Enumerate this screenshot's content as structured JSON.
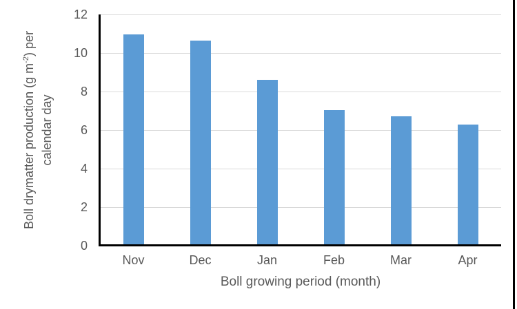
{
  "figure": {
    "background_color": "#FFFFFF",
    "right_border_color": "#000000"
  },
  "axes": {
    "y_title_line1_pre": "Boll drymatter production (g m",
    "y_title_superscript": "-2",
    "y_title_line1_post": ") per",
    "y_title_line2": "calendar day",
    "tick_label_color": "#595959",
    "axis_line_color": "#000000",
    "gridline_color": "#D9D9D9"
  },
  "chart_data": {
    "type": "bar",
    "categories": [
      "Nov",
      "Dec",
      "Jan",
      "Feb",
      "Mar",
      "Apr"
    ],
    "values": [
      10.95,
      10.65,
      8.6,
      7.05,
      6.7,
      6.3
    ],
    "title": "",
    "xlabel": "Boll growing period (month)",
    "ylabel": "Boll drymatter production (g m-2) per calendar day",
    "ylim": [
      0,
      12
    ],
    "yticks": [
      0,
      2,
      4,
      6,
      8,
      10,
      12
    ],
    "bar_color": "#5B9BD5",
    "grid": true,
    "legend_position": "none"
  }
}
